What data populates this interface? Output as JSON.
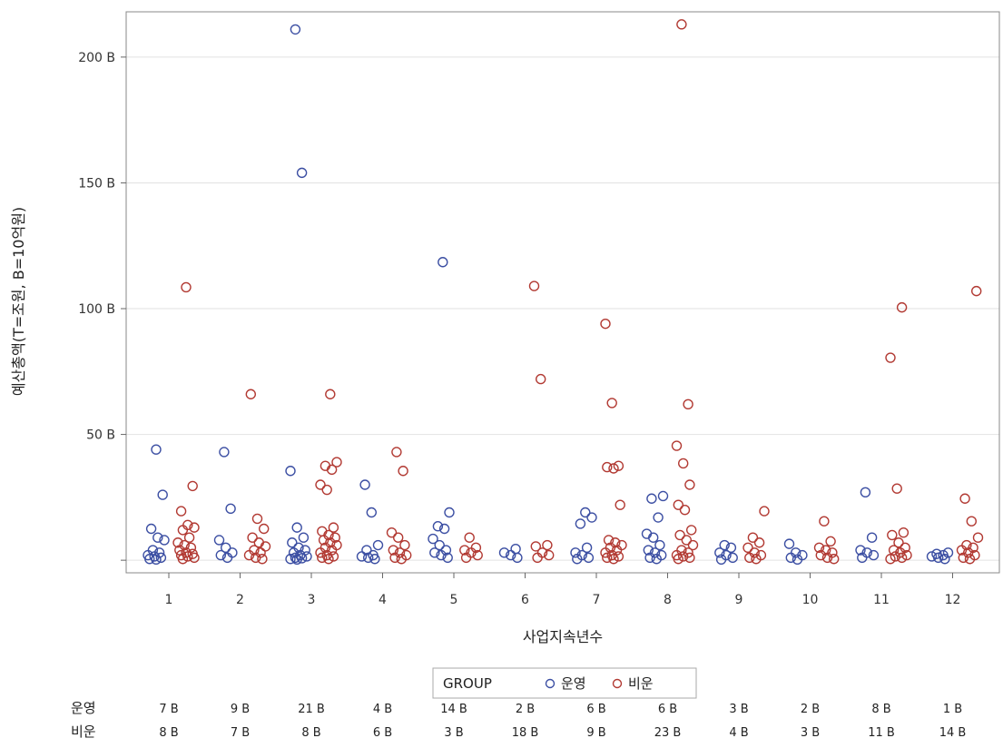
{
  "chart_data": {
    "type": "scatter",
    "xlabel": "사업지속년수",
    "ylabel": "예산총액(T=조원, B=10억원)",
    "xcategories": [
      "1",
      "2",
      "3",
      "4",
      "5",
      "6",
      "7",
      "8",
      "9",
      "10",
      "11",
      "12"
    ],
    "yticks": [
      0,
      50,
      100,
      150,
      200
    ],
    "ytick_labels": [
      "",
      "50 B",
      "100 B",
      "150 B",
      "200 B"
    ],
    "ylim": [
      -5,
      218
    ],
    "grid": true,
    "legend": {
      "title": "GROUP",
      "position": "bottom",
      "entries": [
        "운영",
        "비운"
      ]
    },
    "colors": {
      "운영": "#3c4fa3",
      "비운": "#b23a33"
    },
    "series": [
      {
        "name": "운영",
        "points": [
          [
            1,
            44
          ],
          [
            1,
            26
          ],
          [
            1,
            12.5
          ],
          [
            1,
            9
          ],
          [
            1,
            8
          ],
          [
            1,
            4
          ],
          [
            1,
            3
          ],
          [
            1,
            2
          ],
          [
            1,
            1.5
          ],
          [
            1,
            1
          ],
          [
            1,
            0.5
          ],
          [
            1,
            0.3
          ],
          [
            2,
            43
          ],
          [
            2,
            20.5
          ],
          [
            2,
            8
          ],
          [
            2,
            5
          ],
          [
            2,
            3
          ],
          [
            2,
            2
          ],
          [
            2,
            1
          ],
          [
            3,
            211
          ],
          [
            3,
            154
          ],
          [
            3,
            35.5
          ],
          [
            3,
            13
          ],
          [
            3,
            9
          ],
          [
            3,
            7
          ],
          [
            3,
            5
          ],
          [
            3,
            4
          ],
          [
            3,
            3
          ],
          [
            3,
            2
          ],
          [
            3,
            1.5
          ],
          [
            3,
            1
          ],
          [
            3,
            0.8
          ],
          [
            3,
            0.5
          ],
          [
            3,
            0.3
          ],
          [
            4,
            30
          ],
          [
            4,
            19
          ],
          [
            4,
            6
          ],
          [
            4,
            4
          ],
          [
            4,
            2
          ],
          [
            4,
            1.5
          ],
          [
            4,
            1
          ],
          [
            4,
            0.5
          ],
          [
            5,
            118.5
          ],
          [
            5,
            19
          ],
          [
            5,
            13.5
          ],
          [
            5,
            12.5
          ],
          [
            5,
            8.5
          ],
          [
            5,
            6
          ],
          [
            5,
            4
          ],
          [
            5,
            3
          ],
          [
            5,
            2
          ],
          [
            5,
            1
          ],
          [
            6,
            4.5
          ],
          [
            6,
            3
          ],
          [
            6,
            2
          ],
          [
            6,
            1
          ],
          [
            7,
            19
          ],
          [
            7,
            17
          ],
          [
            7,
            14.5
          ],
          [
            7,
            5
          ],
          [
            7,
            3
          ],
          [
            7,
            2
          ],
          [
            7,
            1
          ],
          [
            7,
            0.5
          ],
          [
            8,
            25.5
          ],
          [
            8,
            24.5
          ],
          [
            8,
            17
          ],
          [
            8,
            10.5
          ],
          [
            8,
            9
          ],
          [
            8,
            6
          ],
          [
            8,
            4
          ],
          [
            8,
            3
          ],
          [
            8,
            2
          ],
          [
            8,
            1
          ],
          [
            8,
            0.5
          ],
          [
            9,
            6
          ],
          [
            9,
            5
          ],
          [
            9,
            3
          ],
          [
            9,
            2
          ],
          [
            9,
            1
          ],
          [
            9,
            0.3
          ],
          [
            10,
            6.5
          ],
          [
            10,
            3
          ],
          [
            10,
            2
          ],
          [
            10,
            1
          ],
          [
            10,
            0.3
          ],
          [
            11,
            27
          ],
          [
            11,
            9
          ],
          [
            11,
            4
          ],
          [
            11,
            3
          ],
          [
            11,
            2
          ],
          [
            11,
            1
          ],
          [
            12,
            3
          ],
          [
            12,
            2.5
          ],
          [
            12,
            2
          ],
          [
            12,
            1.5
          ],
          [
            12,
            1
          ],
          [
            12,
            0.5
          ]
        ]
      },
      {
        "name": "비운",
        "points": [
          [
            1,
            108.5
          ],
          [
            1,
            29.5
          ],
          [
            1,
            19.5
          ],
          [
            1,
            14
          ],
          [
            1,
            13
          ],
          [
            1,
            12
          ],
          [
            1,
            9
          ],
          [
            1,
            7
          ],
          [
            1,
            6
          ],
          [
            1,
            5
          ],
          [
            1,
            4
          ],
          [
            1,
            3
          ],
          [
            1,
            2.5
          ],
          [
            1,
            2
          ],
          [
            1,
            1.5
          ],
          [
            1,
            1
          ],
          [
            1,
            0.5
          ],
          [
            2,
            66
          ],
          [
            2,
            16.5
          ],
          [
            2,
            12.5
          ],
          [
            2,
            9
          ],
          [
            2,
            7
          ],
          [
            2,
            5.5
          ],
          [
            2,
            4
          ],
          [
            2,
            3
          ],
          [
            2,
            2
          ],
          [
            2,
            1
          ],
          [
            2,
            0.5
          ],
          [
            3,
            66
          ],
          [
            3,
            39
          ],
          [
            3,
            37.5
          ],
          [
            3,
            36
          ],
          [
            3,
            30
          ],
          [
            3,
            28
          ],
          [
            3,
            13
          ],
          [
            3,
            11.5
          ],
          [
            3,
            10
          ],
          [
            3,
            9
          ],
          [
            3,
            8
          ],
          [
            3,
            7
          ],
          [
            3,
            6
          ],
          [
            3,
            5
          ],
          [
            3,
            4
          ],
          [
            3,
            3
          ],
          [
            3,
            2
          ],
          [
            3,
            1.5
          ],
          [
            3,
            1
          ],
          [
            3,
            0.5
          ],
          [
            4,
            43
          ],
          [
            4,
            35.5
          ],
          [
            4,
            11
          ],
          [
            4,
            9
          ],
          [
            4,
            6
          ],
          [
            4,
            4
          ],
          [
            4,
            3
          ],
          [
            4,
            2
          ],
          [
            4,
            1
          ],
          [
            4,
            0.5
          ],
          [
            5,
            9
          ],
          [
            5,
            5
          ],
          [
            5,
            4
          ],
          [
            5,
            3
          ],
          [
            5,
            2
          ],
          [
            5,
            1
          ],
          [
            6,
            109
          ],
          [
            6,
            72
          ],
          [
            6,
            6
          ],
          [
            6,
            5.5
          ],
          [
            6,
            3
          ],
          [
            6,
            2
          ],
          [
            6,
            1
          ],
          [
            7,
            94
          ],
          [
            7,
            62.5
          ],
          [
            7,
            37.5
          ],
          [
            7,
            37
          ],
          [
            7,
            36.5
          ],
          [
            7,
            22
          ],
          [
            7,
            8
          ],
          [
            7,
            7
          ],
          [
            7,
            6
          ],
          [
            7,
            5
          ],
          [
            7,
            4
          ],
          [
            7,
            3
          ],
          [
            7,
            2
          ],
          [
            7,
            1.5
          ],
          [
            7,
            1
          ],
          [
            7,
            0.5
          ],
          [
            8,
            213
          ],
          [
            8,
            62
          ],
          [
            8,
            45.5
          ],
          [
            8,
            38.5
          ],
          [
            8,
            30
          ],
          [
            8,
            22
          ],
          [
            8,
            20
          ],
          [
            8,
            12
          ],
          [
            8,
            10
          ],
          [
            8,
            8
          ],
          [
            8,
            6
          ],
          [
            8,
            4
          ],
          [
            8,
            3
          ],
          [
            8,
            2
          ],
          [
            8,
            1.5
          ],
          [
            8,
            1
          ],
          [
            8,
            0.5
          ],
          [
            9,
            19.5
          ],
          [
            9,
            9
          ],
          [
            9,
            7
          ],
          [
            9,
            5
          ],
          [
            9,
            3
          ],
          [
            9,
            2
          ],
          [
            9,
            1
          ],
          [
            9,
            0.5
          ],
          [
            10,
            15.5
          ],
          [
            10,
            7.5
          ],
          [
            10,
            5
          ],
          [
            10,
            4
          ],
          [
            10,
            3
          ],
          [
            10,
            2
          ],
          [
            10,
            1
          ],
          [
            10,
            0.5
          ],
          [
            11,
            100.5
          ],
          [
            11,
            80.5
          ],
          [
            11,
            28.5
          ],
          [
            11,
            11
          ],
          [
            11,
            10
          ],
          [
            11,
            7
          ],
          [
            11,
            5
          ],
          [
            11,
            4
          ],
          [
            11,
            3
          ],
          [
            11,
            2
          ],
          [
            11,
            1.5
          ],
          [
            11,
            1
          ],
          [
            11,
            0.5
          ],
          [
            12,
            107
          ],
          [
            12,
            24.5
          ],
          [
            12,
            15.5
          ],
          [
            12,
            9
          ],
          [
            12,
            6
          ],
          [
            12,
            5
          ],
          [
            12,
            4
          ],
          [
            12,
            3
          ],
          [
            12,
            2
          ],
          [
            12,
            1
          ],
          [
            12,
            0.5
          ]
        ]
      }
    ],
    "table": {
      "rows": [
        {
          "label": "운영",
          "values": [
            "7 B",
            "9 B",
            "21 B",
            "4 B",
            "14 B",
            "2 B",
            "6 B",
            "6 B",
            "3 B",
            "2 B",
            "8 B",
            "1 B"
          ]
        },
        {
          "label": "비운",
          "values": [
            "8 B",
            "7 B",
            "8 B",
            "6 B",
            "3 B",
            "18 B",
            "9 B",
            "23 B",
            "4 B",
            "3 B",
            "11 B",
            "14 B"
          ]
        }
      ]
    }
  }
}
